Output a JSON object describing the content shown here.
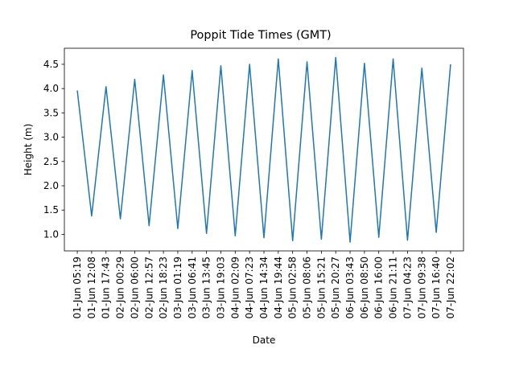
{
  "chart_data": {
    "type": "line",
    "title": "Poppit Tide Times (GMT)",
    "xlabel": "Date",
    "ylabel": "Height (m)",
    "x": [
      "01-Jun 05:19",
      "01-Jun 12:08",
      "01-Jun 17:43",
      "02-Jun 00:29",
      "02-Jun 06:00",
      "02-Jun 12:57",
      "02-Jun 18:23",
      "03-Jun 01:19",
      "03-Jun 06:41",
      "03-Jun 13:45",
      "03-Jun 19:03",
      "04-Jun 02:09",
      "04-Jun 07:23",
      "04-Jun 14:34",
      "04-Jun 19:44",
      "05-Jun 02:58",
      "05-Jun 08:06",
      "05-Jun 15:21",
      "05-Jun 20:27",
      "06-Jun 03:43",
      "06-Jun 08:50",
      "06-Jun 16:00",
      "06-Jun 21:11",
      "07-Jun 04:23",
      "07-Jun 09:38",
      "07-Jun 16:40",
      "07-Jun 22:02"
    ],
    "series": [
      {
        "values": [
          3.96,
          1.38,
          4.04,
          1.32,
          4.19,
          1.18,
          4.28,
          1.12,
          4.37,
          1.02,
          4.47,
          0.97,
          4.5,
          0.93,
          4.61,
          0.87,
          4.55,
          0.9,
          4.64,
          0.84,
          4.52,
          0.94,
          4.61,
          0.88,
          4.42,
          1.04,
          4.5
        ],
        "color": "#1f77b4"
      }
    ],
    "yticks": [
      1.0,
      1.5,
      2.0,
      2.5,
      3.0,
      3.5,
      4.0,
      4.5
    ],
    "ytick_labels": [
      "1.0",
      "1.5",
      "2.0",
      "2.5",
      "3.0",
      "3.5",
      "4.0",
      "4.5"
    ],
    "ylim": [
      0.66,
      4.83
    ],
    "grid": false,
    "legend": "none"
  }
}
